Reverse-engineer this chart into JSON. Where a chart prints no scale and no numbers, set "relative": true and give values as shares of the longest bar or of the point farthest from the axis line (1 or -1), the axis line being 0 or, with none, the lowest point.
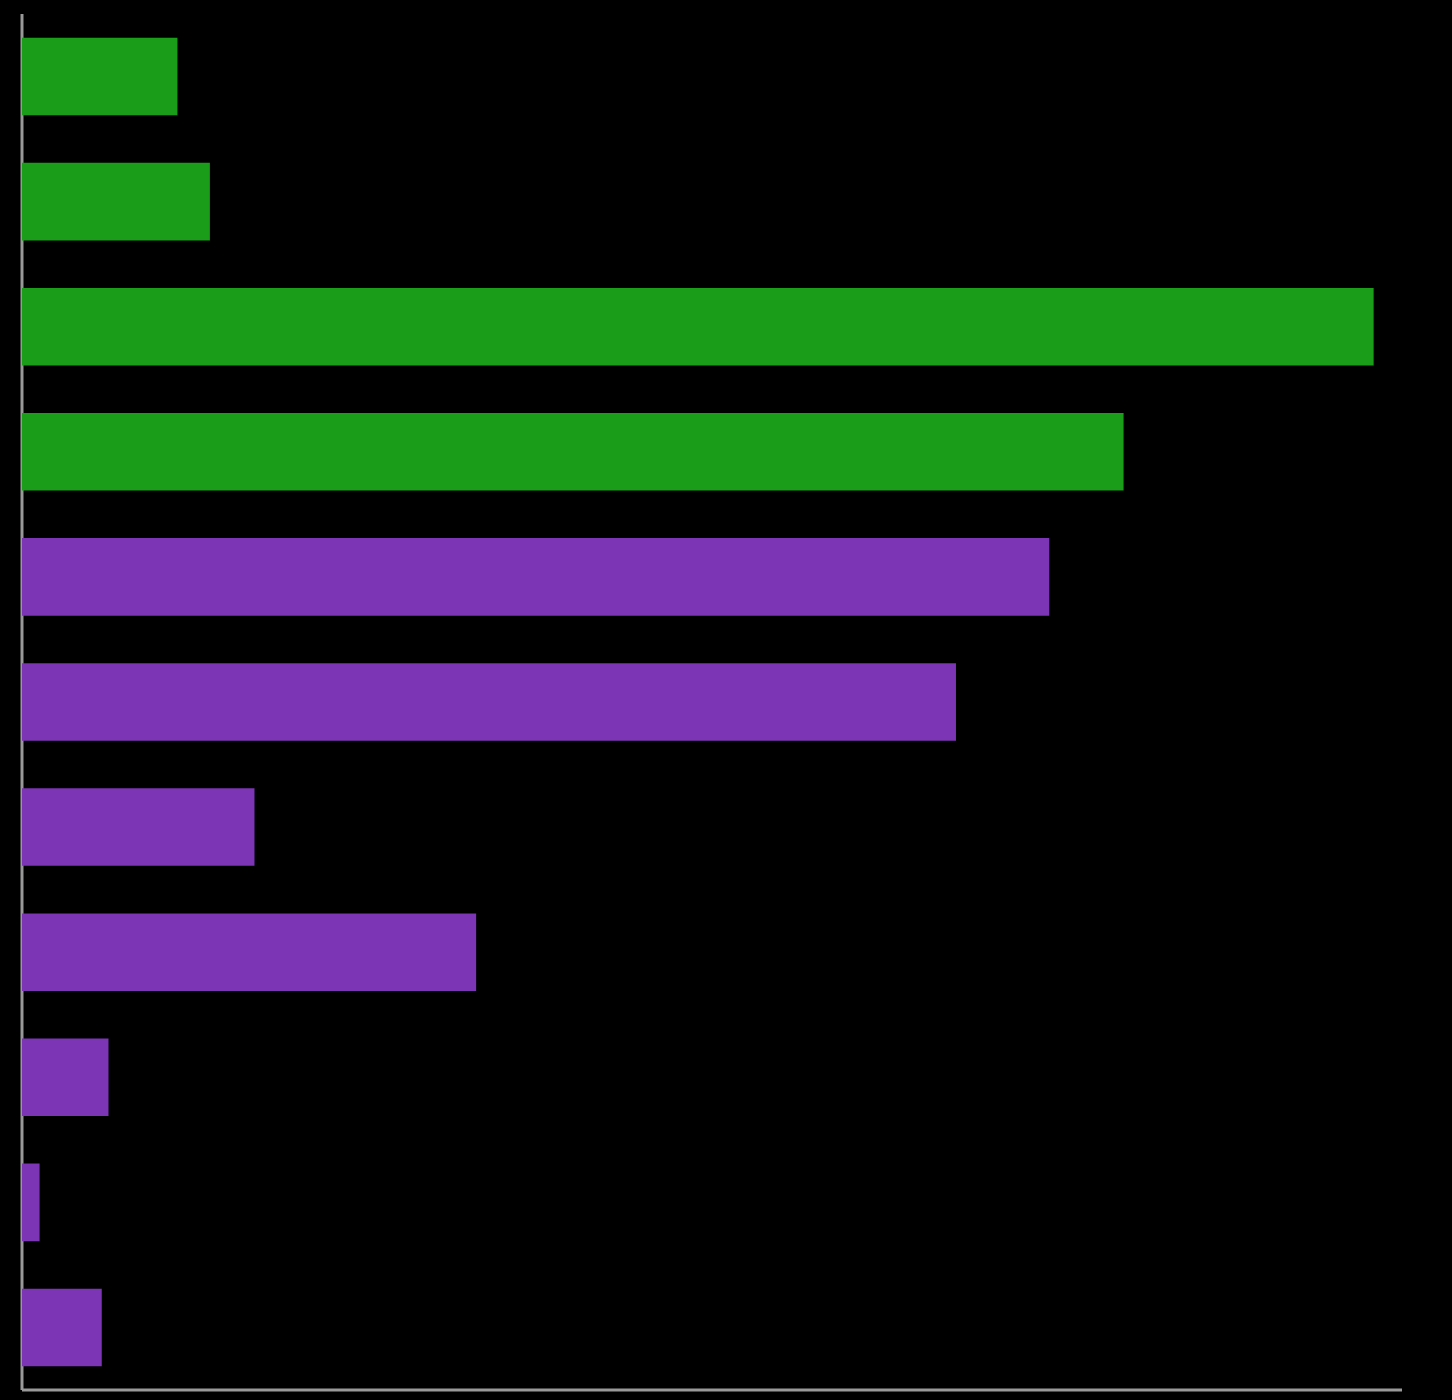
{
  "chart_data": {
    "type": "bar",
    "orientation": "horizontal",
    "relative": true,
    "categories": [
      null,
      null,
      null,
      null,
      null,
      null,
      null,
      null,
      null,
      null,
      null
    ],
    "values": [
      0.115,
      0.139,
      1,
      0.815,
      0.76,
      0.691,
      0.172,
      0.336,
      0.064,
      0.013,
      0.059
    ],
    "colors": [
      "#1a9e1a",
      "#1a9e1a",
      "#1a9e1a",
      "#1a9e1a",
      "#7b35b5",
      "#7b35b5",
      "#7b35b5",
      "#7b35b5",
      "#7b35b5",
      "#7b35b5",
      "#7b35b5"
    ]
  }
}
